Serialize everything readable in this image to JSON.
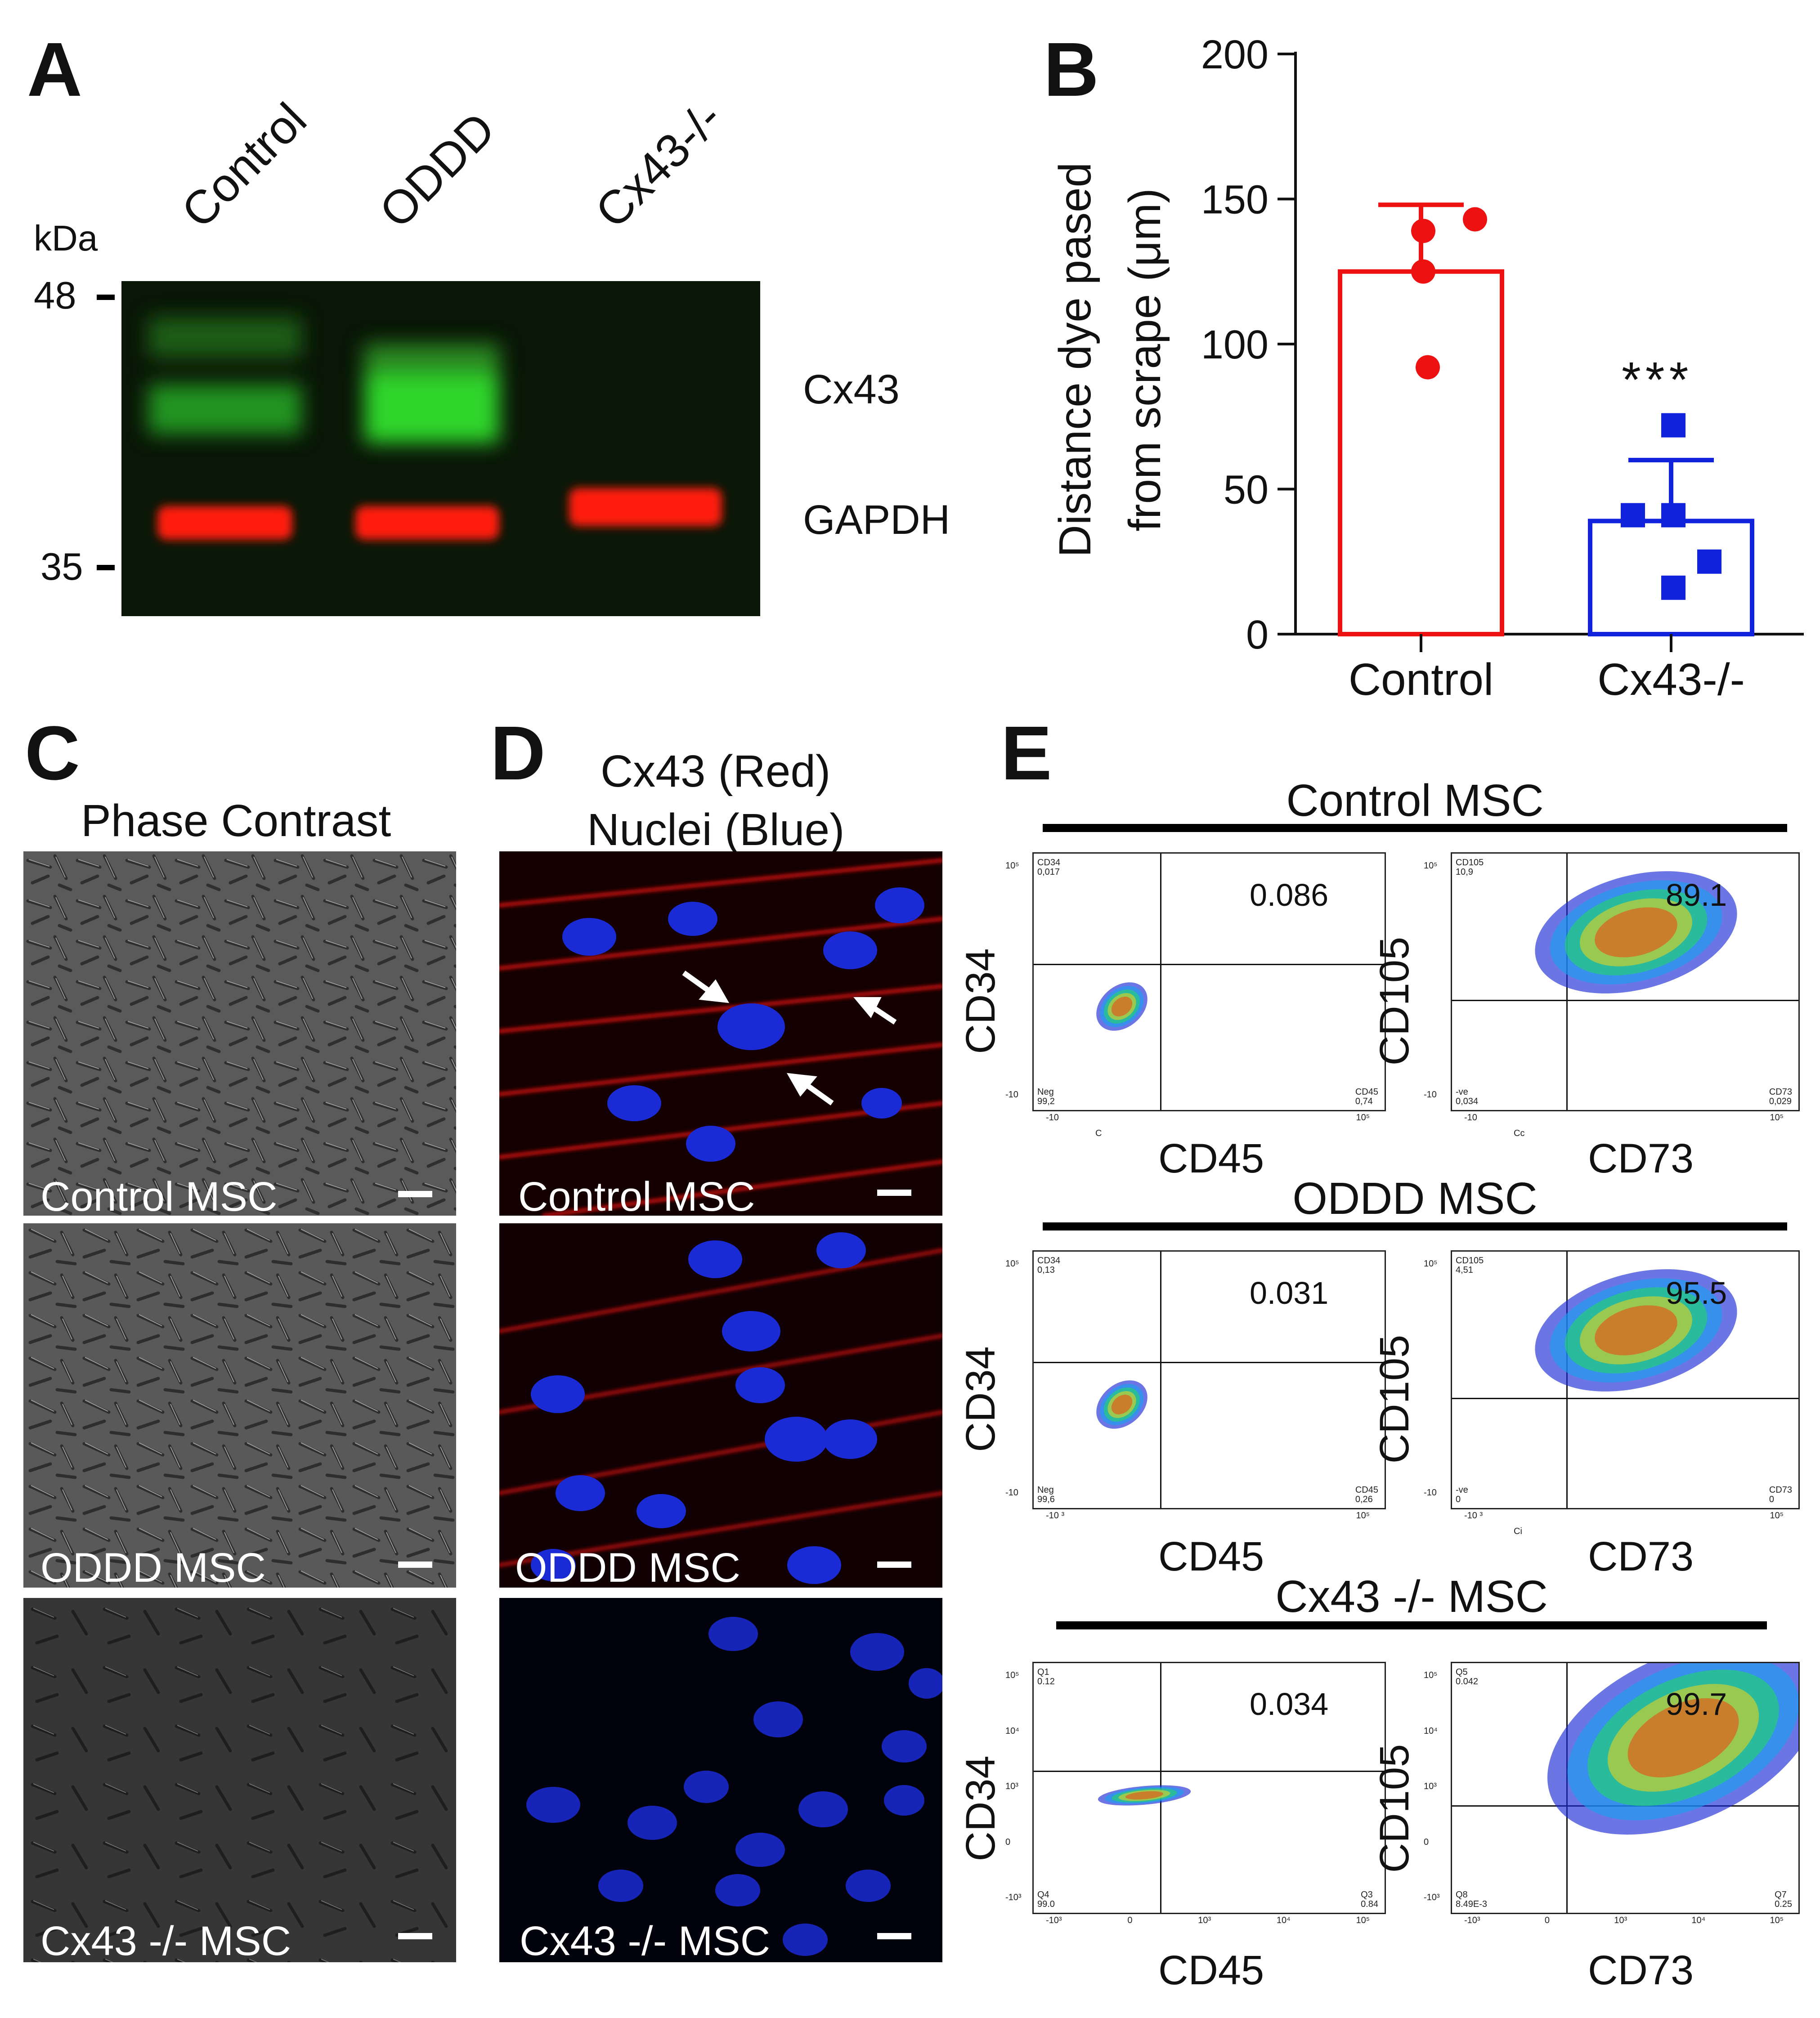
{
  "panels": {
    "A": {
      "letter": "A",
      "kda_label": "kDa",
      "markers": [
        {
          "label": "48"
        },
        {
          "label": "35"
        }
      ],
      "lanes": [
        "Control",
        "ODDD",
        "Cx43-/-"
      ],
      "band_labels": [
        "Cx43",
        "GAPDH"
      ],
      "colors": {
        "cx43": "#22c322",
        "gapdh": "#ff1a0a",
        "blot_bg": "#0b1a08"
      }
    },
    "B": {
      "letter": "B",
      "significance": "***"
    },
    "C": {
      "letter": "C",
      "title": "Phase Contrast",
      "images": [
        "Control MSC",
        "ODDD MSC",
        "Cx43 -/- MSC"
      ]
    },
    "D": {
      "letter": "D",
      "title_line1": "Cx43 (Red)",
      "title_line2": "Nuclei (Blue)",
      "images": [
        "Control MSC",
        "ODDD MSC",
        "Cx43 -/- MSC"
      ]
    },
    "E": {
      "letter": "E",
      "groups": [
        {
          "title": "Control MSC",
          "left": {
            "xlabel": "CD45",
            "ylabel": "CD34",
            "value": "0.086",
            "ul": "CD34\n0,017",
            "ll": "Neg\n99,2",
            "lr": "CD45\n0,74",
            "yticks": [
              "10⁵",
              "-10"
            ],
            "xticks": [
              "-10",
              "10⁵"
            ],
            "corner": "C"
          },
          "right": {
            "xlabel": "CD73",
            "ylabel": "CD105",
            "value": "89.1",
            "ul": "CD105\n10,9",
            "ll": "-ve\n0,034",
            "lr": "CD73\n0,029",
            "yticks": [
              "10⁵",
              "-10"
            ],
            "xticks": [
              "-10",
              "10⁵"
            ],
            "corner": "Cc"
          }
        },
        {
          "title": "ODDD MSC",
          "left": {
            "xlabel": "CD45",
            "ylabel": "CD34",
            "value": "0.031",
            "ul": "CD34\n0,13",
            "ll": "Neg\n99,6",
            "lr": "CD45\n0,26",
            "yticks": [
              "10⁵",
              "-10"
            ],
            "xticks": [
              "-10 ³",
              "10⁵"
            ],
            "corner": ""
          },
          "right": {
            "xlabel": "CD73",
            "ylabel": "CD105",
            "value": "95.5",
            "ul": "CD105\n4,51",
            "ll": "-ve\n0",
            "lr": "CD73\n0",
            "yticks": [
              "10⁵",
              "-10"
            ],
            "xticks": [
              "-10 ³",
              "10⁵"
            ],
            "corner": "Ci"
          }
        },
        {
          "title": "Cx43 -/- MSC",
          "left": {
            "xlabel": "CD45",
            "ylabel": "CD34",
            "value": "0.034",
            "ul": "Q1\n0.12",
            "ll": "Q4\n99.0",
            "lr": "Q3\n0.84",
            "yticks": [
              "10⁵",
              "10⁴",
              "10³",
              "0",
              "-10³"
            ],
            "xticks": [
              "-10³",
              "0",
              "10³",
              "10⁴",
              "10⁵"
            ],
            "corner": ""
          },
          "right": {
            "xlabel": "CD73",
            "ylabel": "CD105",
            "value": "99.7",
            "ul": "Q5\n0.042",
            "ll": "Q8\n8.49E-3",
            "lr": "Q7\n0.25",
            "yticks": [
              "10⁵",
              "10⁴",
              "10³",
              "0",
              "-10³"
            ],
            "xticks": [
              "-10³",
              "0",
              "10³",
              "10⁴",
              "10⁵"
            ],
            "corner": ""
          }
        }
      ]
    }
  },
  "chart_data": {
    "type": "bar",
    "categories": [
      "Control",
      "Cx43-/-"
    ],
    "values": [
      125,
      39
    ],
    "error_sd": [
      23,
      21
    ],
    "points": [
      [
        143,
        139,
        125,
        92
      ],
      [
        72,
        41,
        41,
        25,
        16
      ]
    ],
    "colors": [
      "#ee1111",
      "#1122dd"
    ],
    "ylabel_line1": "Distance dye pased",
    "ylabel_line2": "from scrape (μm)",
    "ylim": [
      0,
      200
    ],
    "yticks": [
      0,
      50,
      100,
      150,
      200
    ]
  }
}
